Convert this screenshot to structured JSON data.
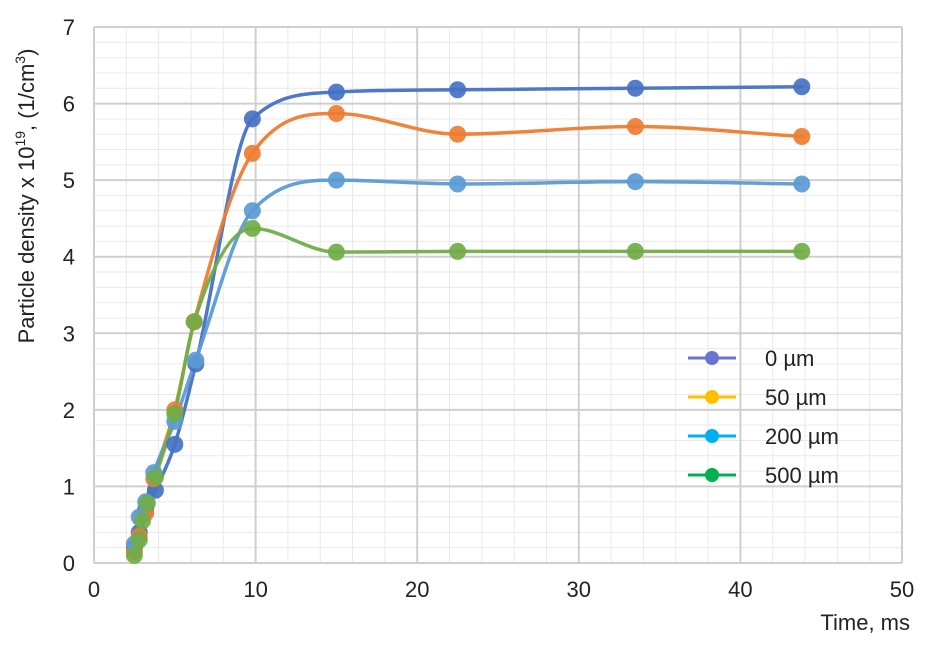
{
  "chart_data": {
    "type": "line",
    "title": "",
    "xlabel": "Time, ms",
    "ylabel_main": "Particle density x 10",
    "ylabel_exp": "19",
    "ylabel_tail": ", (1/cm",
    "ylabel_unit_exp": "3",
    "ylabel_close": ")",
    "xlim": [
      0,
      50
    ],
    "ylim": [
      0,
      7
    ],
    "x_ticks": [
      0,
      10,
      20,
      30,
      40,
      50
    ],
    "y_ticks": [
      0,
      1,
      2,
      3,
      4,
      5,
      6,
      7
    ],
    "grid": true,
    "minor_grid": true,
    "smooth": true,
    "legend_position": "lower-right",
    "series": [
      {
        "name": "0 µm",
        "line_color": "#4472C4",
        "legend_color": "#6A73D0",
        "points": [
          [
            2.5,
            0.2
          ],
          [
            2.8,
            0.4
          ],
          [
            3.2,
            0.7
          ],
          [
            3.8,
            0.95
          ],
          [
            5.0,
            1.55
          ],
          [
            6.3,
            2.6
          ],
          [
            9.8,
            5.8
          ],
          [
            15.0,
            6.15
          ],
          [
            22.5,
            6.18
          ],
          [
            33.5,
            6.2
          ],
          [
            43.8,
            6.22
          ]
        ]
      },
      {
        "name": "50 µm",
        "line_color": "#ED7D31",
        "legend_color": "#FFC000",
        "points": [
          [
            2.5,
            0.15
          ],
          [
            2.8,
            0.35
          ],
          [
            3.2,
            0.65
          ],
          [
            3.7,
            1.1
          ],
          [
            5.0,
            2.0
          ],
          [
            6.2,
            3.15
          ],
          [
            9.8,
            5.35
          ],
          [
            15.0,
            5.87
          ],
          [
            22.5,
            5.6
          ],
          [
            33.5,
            5.7
          ],
          [
            43.8,
            5.57
          ]
        ]
      },
      {
        "name": "200 µm",
        "line_color": "#5B9BD5",
        "legend_color": "#00B0F0",
        "points": [
          [
            2.5,
            0.25
          ],
          [
            2.8,
            0.6
          ],
          [
            3.2,
            0.8
          ],
          [
            3.7,
            1.18
          ],
          [
            5.0,
            1.85
          ],
          [
            6.3,
            2.65
          ],
          [
            9.8,
            4.6
          ],
          [
            15.0,
            5.0
          ],
          [
            22.5,
            4.95
          ],
          [
            33.5,
            4.98
          ],
          [
            43.8,
            4.95
          ]
        ]
      },
      {
        "name": "500 µm",
        "line_color": "#70AD47",
        "legend_color": "#00B050",
        "points": [
          [
            2.5,
            0.1
          ],
          [
            2.8,
            0.3
          ],
          [
            3.0,
            0.55
          ],
          [
            3.3,
            0.78
          ],
          [
            3.8,
            1.12
          ],
          [
            5.0,
            1.95
          ],
          [
            6.2,
            3.15
          ],
          [
            9.8,
            4.37
          ],
          [
            15.0,
            4.06
          ],
          [
            22.5,
            4.07
          ],
          [
            33.5,
            4.07
          ],
          [
            43.8,
            4.07
          ]
        ]
      }
    ]
  }
}
